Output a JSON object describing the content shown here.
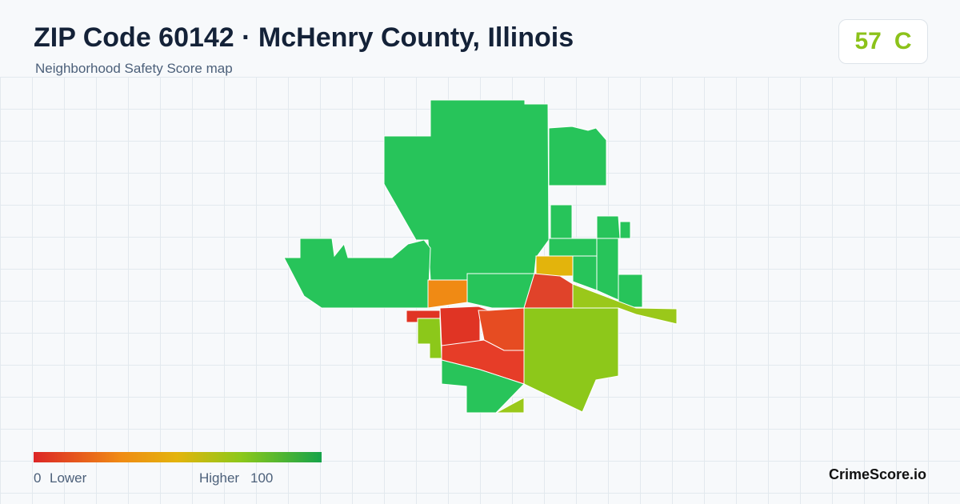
{
  "header": {
    "title": "ZIP Code 60142 · McHenry County, Illinois",
    "subtitle": "Neighborhood Safety Score map"
  },
  "badge": {
    "score": 57,
    "grade": "C"
  },
  "legend": {
    "min": 0,
    "min_label": "Lower",
    "max_label": "Higher",
    "max": 100
  },
  "brand": "CrimeScore.io"
}
